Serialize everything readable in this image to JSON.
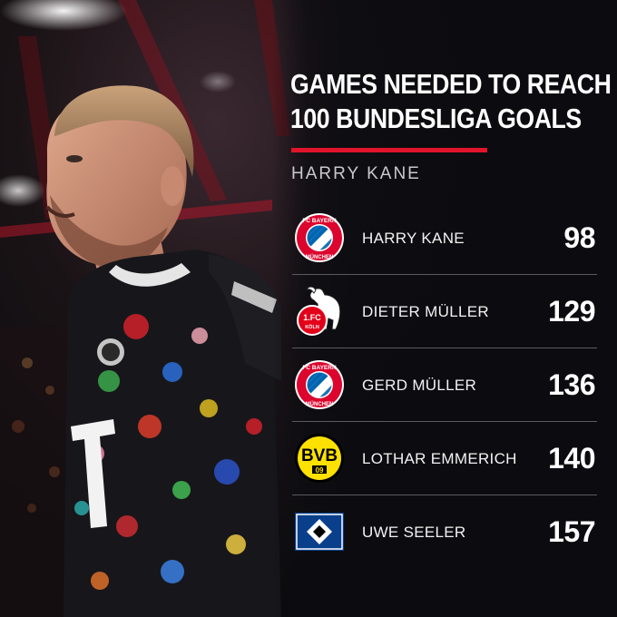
{
  "header": {
    "title_lines": [
      "GAMES NEEDED TO REACH",
      "100 BUNDESLIGA GOALS"
    ],
    "subtitle": "HARRY KANE"
  },
  "rows": [
    {
      "club_icon": "fc-bayern-crest-icon",
      "name": "HARRY KANE",
      "games": "98"
    },
    {
      "club_icon": "fc-koln-crest-icon",
      "name": "DIETER MÜLLER",
      "games": "129"
    },
    {
      "club_icon": "fc-bayern-crest-icon",
      "name": "GERD MÜLLER",
      "games": "136"
    },
    {
      "club_icon": "bvb-crest-icon",
      "name": "LOTHAR EMMERICH",
      "games": "140"
    },
    {
      "club_icon": "hsv-crest-icon",
      "name": "UWE SEELER",
      "games": "157"
    }
  ],
  "colors": {
    "accent_red": "#e1142c",
    "background": "#0b0c10",
    "bayern_red": "#dc052d",
    "bayern_blue": "#0066b2",
    "bvb_yellow": "#fde100",
    "hsv_blue": "#0a3f8c"
  }
}
